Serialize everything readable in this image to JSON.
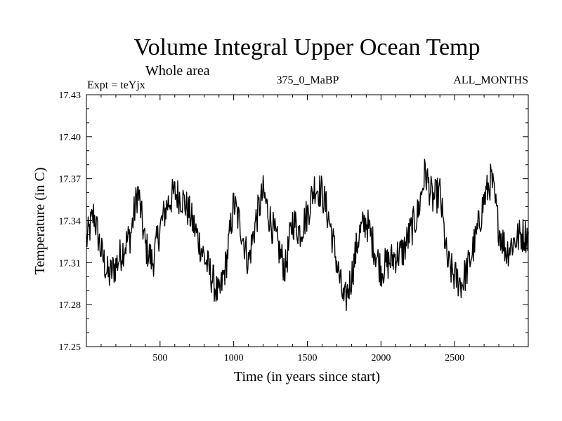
{
  "chart_data": {
    "type": "line",
    "title": "Volume Integral Upper Ocean Temp",
    "subtitle": "Whole area",
    "header_left": "Expt = teYjx",
    "header_center": "375_0_MaBP",
    "header_right": "ALL_MONTHS",
    "xlabel": "Time (in years since start)",
    "ylabel": "Temperature (in C)",
    "xlim": [
      0,
      3000
    ],
    "ylim": [
      17.25,
      17.43
    ],
    "xticks": [
      500,
      1000,
      1500,
      2000,
      2500
    ],
    "xtick_labels": [
      "500",
      "1000",
      "1500",
      "2000",
      "2500"
    ],
    "yticks": [
      17.25,
      17.28,
      17.31,
      17.34,
      17.37,
      17.4,
      17.43
    ],
    "ytick_labels": [
      "17.25",
      "17.28",
      "17.31",
      "17.34",
      "17.37",
      "17.40",
      "17.43"
    ],
    "grid": false,
    "series": [
      {
        "name": "Volume integral upper ocean temperature",
        "x": [
          0,
          50,
          100,
          150,
          200,
          250,
          300,
          350,
          400,
          450,
          500,
          550,
          600,
          650,
          700,
          750,
          800,
          850,
          900,
          950,
          1000,
          1050,
          1100,
          1150,
          1200,
          1250,
          1300,
          1350,
          1400,
          1450,
          1500,
          1550,
          1600,
          1650,
          1700,
          1750,
          1800,
          1850,
          1900,
          1950,
          2000,
          2050,
          2100,
          2150,
          2200,
          2250,
          2300,
          2350,
          2400,
          2450,
          2500,
          2550,
          2600,
          2650,
          2700,
          2750,
          2800,
          2850,
          2900,
          2950,
          3000
        ],
        "values": [
          17.325,
          17.345,
          17.318,
          17.3,
          17.308,
          17.32,
          17.33,
          17.362,
          17.322,
          17.31,
          17.335,
          17.352,
          17.36,
          17.356,
          17.345,
          17.33,
          17.314,
          17.3,
          17.285,
          17.31,
          17.352,
          17.335,
          17.31,
          17.34,
          17.36,
          17.34,
          17.322,
          17.305,
          17.34,
          17.332,
          17.345,
          17.365,
          17.36,
          17.34,
          17.31,
          17.28,
          17.3,
          17.33,
          17.34,
          17.322,
          17.305,
          17.31,
          17.315,
          17.318,
          17.332,
          17.345,
          17.375,
          17.355,
          17.36,
          17.31,
          17.3,
          17.295,
          17.31,
          17.33,
          17.355,
          17.37,
          17.335,
          17.318,
          17.325,
          17.33,
          17.33
        ]
      }
    ]
  }
}
